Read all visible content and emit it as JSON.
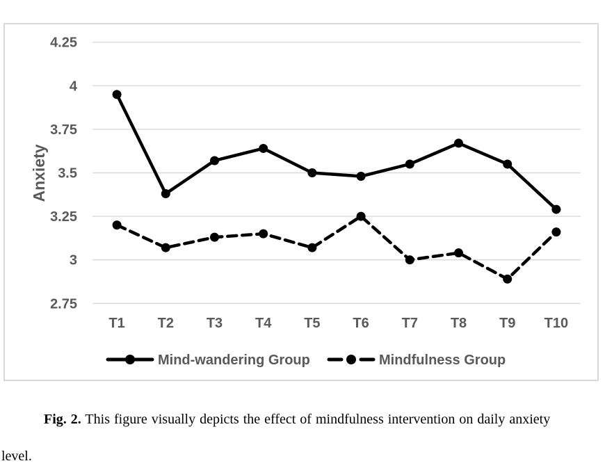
{
  "figure": {
    "caption_label": "Fig. 2.",
    "caption_text": "This figure visually depicts the effect of mindfulness intervention on daily anxiety",
    "caption_continuation": "level."
  },
  "chart_data": {
    "type": "line",
    "title": "",
    "xlabel": "",
    "ylabel": "Anxiety",
    "categories": [
      "T1",
      "T2",
      "T3",
      "T4",
      "T5",
      "T6",
      "T7",
      "T8",
      "T9",
      "T10"
    ],
    "y_ticks": [
      4.25,
      4,
      3.75,
      3.5,
      3.25,
      3,
      2.75
    ],
    "y_tick_labels": [
      "4.25",
      "4",
      "3.75",
      "3.5",
      "3.25",
      "3",
      "2.75"
    ],
    "ylim": [
      2.75,
      4.25
    ],
    "grid": "horizontal",
    "legend_position": "bottom",
    "series": [
      {
        "name": "Mind-wandering Group",
        "line_style": "solid",
        "marker": "circle",
        "color": "#000000",
        "values": [
          3.95,
          3.38,
          3.57,
          3.64,
          3.5,
          3.48,
          3.55,
          3.67,
          3.55,
          3.29
        ]
      },
      {
        "name": "Mindfulness Group",
        "line_style": "dashed",
        "marker": "circle",
        "color": "#000000",
        "values": [
          3.2,
          3.07,
          3.13,
          3.15,
          3.07,
          3.25,
          3.0,
          3.04,
          2.89,
          3.16
        ]
      }
    ],
    "colors": {
      "axis_text": "#595959",
      "gridline": "#d9d9d9",
      "panel_border": "#d9d9d9",
      "series_line": "#000000",
      "background": "#ffffff"
    }
  }
}
